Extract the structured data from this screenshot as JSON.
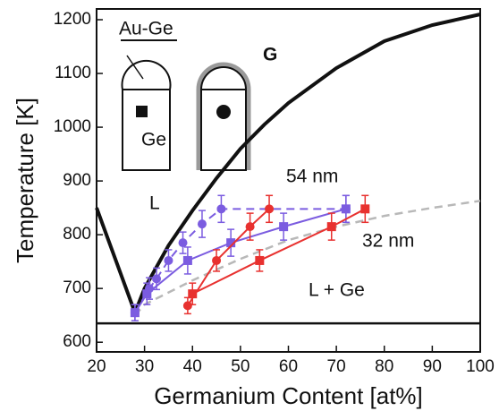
{
  "chart_data": {
    "type": "line",
    "x_label": "Germanium Content [at%]",
    "y_label": "Temperature [K]",
    "xlim": [
      20,
      100
    ],
    "ylim": [
      582,
      1220
    ],
    "xticks": [
      20,
      30,
      40,
      50,
      60,
      70,
      80,
      90,
      100
    ],
    "yticks": [
      600,
      700,
      800,
      900,
      1000,
      1100,
      1200
    ],
    "series": [
      {
        "color": "#111111",
        "style": "solid",
        "width": 4,
        "x": [
          20,
          28,
          30,
          35,
          40,
          45,
          50,
          55,
          60,
          70,
          80,
          90,
          100
        ],
        "values": [
          850,
          655,
          700,
          780,
          845,
          905,
          960,
          1005,
          1045,
          1110,
          1160,
          1190,
          1210
        ]
      },
      {
        "color": "#111111",
        "style": "solid",
        "width": 2.5,
        "x": [
          20,
          100
        ],
        "values": [
          635,
          635
        ]
      },
      {
        "color": "#b8b8b8",
        "style": "dashed",
        "width": 2.5,
        "x": [
          28,
          30,
          40,
          50,
          60,
          70,
          80,
          90,
          100
        ],
        "values": [
          650,
          670,
          715,
          755,
          790,
          815,
          835,
          850,
          863
        ]
      },
      {
        "color": "#7b5ce0",
        "style": "solid",
        "width": 2,
        "marker": "square",
        "x": [
          28,
          30.5,
          39,
          48,
          59,
          72
        ],
        "values": [
          655,
          690,
          752,
          785,
          815,
          848
        ],
        "errors": [
          15,
          20,
          25,
          25,
          25,
          25
        ]
      },
      {
        "color": "#7b5ce0",
        "style": "dashed",
        "width": 2,
        "marker": "circle",
        "x": [
          28,
          31,
          32.5,
          35,
          38,
          42,
          46,
          72
        ],
        "values": [
          655,
          700,
          718,
          752,
          785,
          820,
          848,
          848
        ],
        "errors": [
          15,
          20,
          20,
          20,
          20,
          25,
          25,
          25
        ]
      },
      {
        "color": "#e8312f",
        "style": "solid",
        "width": 2,
        "marker": "square",
        "x": [
          40,
          54,
          69,
          76
        ],
        "values": [
          690,
          752,
          815,
          848
        ],
        "errors": [
          20,
          20,
          25,
          25
        ]
      },
      {
        "color": "#e8312f",
        "style": "solid",
        "width": 2,
        "marker": "circle",
        "x": [
          39,
          45,
          52,
          56
        ],
        "values": [
          668,
          752,
          815,
          848
        ],
        "errors": [
          15,
          20,
          25,
          25
        ]
      }
    ],
    "annotations": [
      "L",
      "L + Ge",
      "54 nm",
      "32 nm",
      "Au-Ge",
      "Ge",
      "G"
    ],
    "annotation_colors": [
      "#111111",
      "#111111",
      "#7b5ce0",
      "#e8312f",
      "#111111",
      "#111111",
      "#8a8a8a"
    ]
  }
}
